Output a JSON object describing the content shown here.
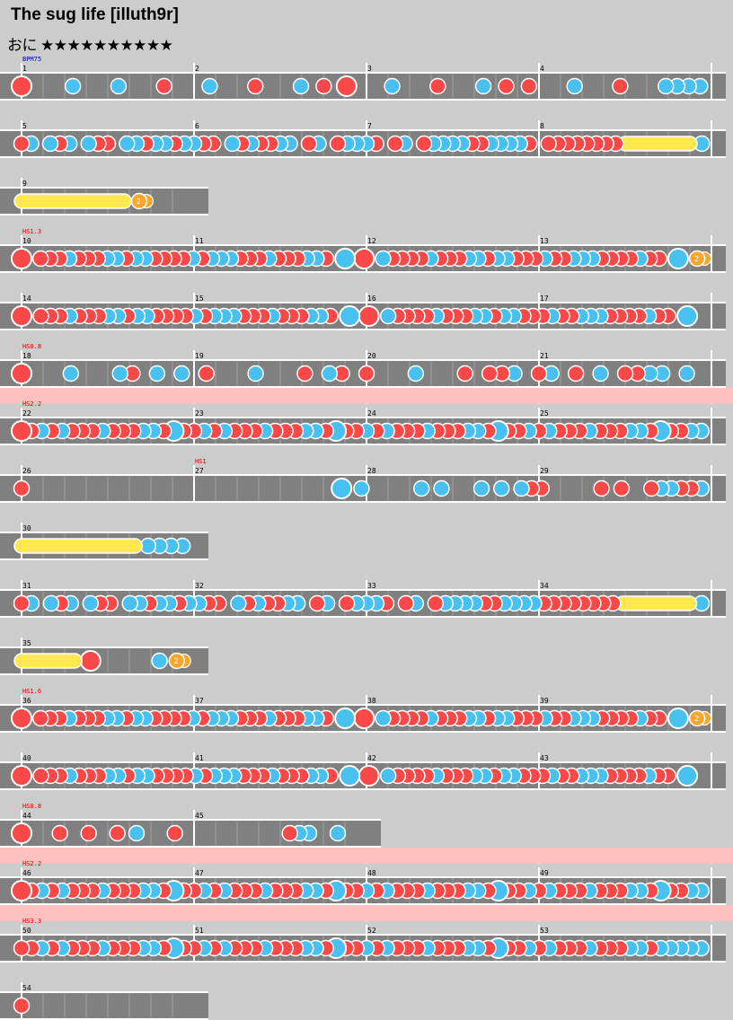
{
  "song": {
    "title": "The sug life [illuth9r]",
    "difficulty_label": "おに",
    "level": 10,
    "stars": "★★★★★★★★★★"
  },
  "colors": {
    "background": "#cccccc",
    "lane": "#808080",
    "don": "#f84848",
    "ka": "#48c0f0",
    "drumroll": "#ffe850",
    "balloon": "#f8a830",
    "bpm_text": "#0000c0",
    "hs_text": "#e00000",
    "hs_band": "#ffc0c0"
  },
  "rows": [
    {
      "start_bar": 1,
      "bars": 4,
      "tag": {
        "text": "BPM75",
        "kind": "bpm"
      },
      "notes": "D........k.......k.......d.......k.......d.......k...d...D.......k.......d.......k...d...d.......k.......d.......k.k.k.k."
    },
    {
      "start_bar": 5,
      "bars": 4,
      "tag": null,
      "notes": "d.k...k.d.k...k.d.d...k.k.d.k.k.d.k.k.d.d...k.d.k.d.d.k.k...d.k...d.k.k.k.d...d.k...d.k.k.k.k.d.d.k.k.k.k.d...d.d.d.d.d.d.d.d.R...............k."
    },
    {
      "start_bar": 9,
      "bars": 1,
      "tag": null,
      "notes": "R..............B......"
    },
    {
      "start_bar": 10,
      "bars": 4,
      "tag": {
        "text": "HS1.3",
        "kind": "hs"
      },
      "notes": "D...d.d.d.k.d.d.d.k.k.d.k.k.d.d.d.d.k.d.k.k.k.d.d.d.k.d.d.d.k.k.d...K...D...k.d.d.d.d.k.d.d.d.k.k.d.k.k.d.d.d.k.d.d.k.k.k.d.d.d.d.k.d.d...K...B.."
    },
    {
      "start_bar": 14,
      "bars": 4,
      "tag": null,
      "notes": "D...d.d.d.k.d.d.d.k.k.d.k.k.d.d.d.d.k.d.k.k.k.d.d.d.k.d.d.d.k.k.d...K...D...k.d.d.d.d.k.d.d.d.k.k.d.k.k.d.d.d.k.d.d.k.k.k.d.d.d.d.k.d.d...K...."
    },
    {
      "start_bar": 18,
      "bars": 4,
      "tag": {
        "text": "HS0.8",
        "kind": "hs"
      },
      "notes": "D.......k.......k.d...k...k...d.......k.......d...k.d...d.......k.......d...d.d.k...d.k...d...k...d.d.k.k...k..."
    },
    {
      "start_bar": 22,
      "bars": 4,
      "tag": {
        "text": "HS2.2",
        "kind": "hs",
        "band": true
      },
      "notes": "D.d.k.d.k.d.d.d.k.d.d.d.k.k.d.K.d.d.k.d.k.d.d.d.k.d.d.d.k.k.d.K.d.d.k.d.k.d.d.d.k.d.d.d.k.k.d.K.d.d.k.d.k.d.d.d.k.d.d.d.k.k.d.K.d.d.k.k."
    },
    {
      "start_bar": 26,
      "bars": 4,
      "tag": null,
      "tag_mid": {
        "text": "HS1",
        "bar_index": 1
      },
      "notes": "d...............................................................K...k...........k...k.......k...k...k.d.d...........d...d.....d.k.k.d.d.k."
    },
    {
      "start_bar": 30,
      "bars": 1,
      "tag": null,
      "notes": "R.....................k.k.k.k."
    },
    {
      "start_bar": 31,
      "bars": 4,
      "tag": null,
      "notes": "d.k...k.d.k...k.d.d...k.k.d.k.k.d.k.k.d.d...k.d.k.d.d.k.k...d.k...d.k.k.k.d...d.k...d.k.k.k.k.d.d.k.k.k.k.d.d.d.d.d.d.d.d.R...............k."
    },
    {
      "start_bar": 35,
      "bars": 1,
      "tag": null,
      "notes": "R.......D.......k.B."
    },
    {
      "start_bar": 36,
      "bars": 4,
      "tag": {
        "text": "HS1.6",
        "kind": "hs"
      },
      "notes": "D...d.d.d.k.d.d.d.k.k.d.k.k.d.d.d.d.k.d.k.k.k.d.d.d.k.d.d.d.k.k.d...K...D...k.d.d.d.d.k.d.d.d.k.k.d.k.k.d.d.d.k.d.d.k.k.k.d.d.d.d.k.d.d...K...B.."
    },
    {
      "start_bar": 40,
      "bars": 4,
      "tag": null,
      "notes": "D...d.d.d.k.d.d.d.k.k.d.k.k.d.d.d.d.k.d.k.k.k.d.d.d.k.d.d.d.k.k.d...K...D...k.d.d.d.d.k.d.d.d.k.k.d.k.k.d.d.d.k.d.d.k.k.k.d.d.d.d.k.d.d...K...."
    },
    {
      "start_bar": 44,
      "bars": 2,
      "tag": {
        "text": "HS0.8",
        "kind": "hs"
      },
      "notes": "D.......d.....d.....d...k.......d.......................d.k.k.....k....."
    },
    {
      "start_bar": 46,
      "bars": 4,
      "tag": {
        "text": "HS2.2",
        "kind": "hs",
        "band": true
      },
      "notes": "D.d.k.d.k.d.d.d.k.d.d.d.k.k.d.K.d.d.k.d.k.d.d.d.k.d.d.d.k.k.d.K.d.d.k.d.k.d.d.d.k.d.d.d.k.k.d.K.d.d.k.d.k.d.d.d.k.d.d.d.k.k.d.K.d.d.k.k."
    },
    {
      "start_bar": 50,
      "bars": 4,
      "tag": {
        "text": "HS3.3",
        "kind": "hs",
        "band": true
      },
      "notes": "d.d.k.d.k.d.d.d.k.d.d.d.k.k.d.K.d.d.k.d.k.d.d.d.k.d.d.d.k.k.d.K.d.d.k.d.k.d.d.d.k.d.d.d.k.k.d.K.d.d.k.d.k.d.d.d.k.d.d.d.k.k.d.k.k.k.k.k."
    },
    {
      "start_bar": 54,
      "bars": 1,
      "tag": null,
      "notes": "d......................."
    }
  ],
  "balloon_label": "2"
}
